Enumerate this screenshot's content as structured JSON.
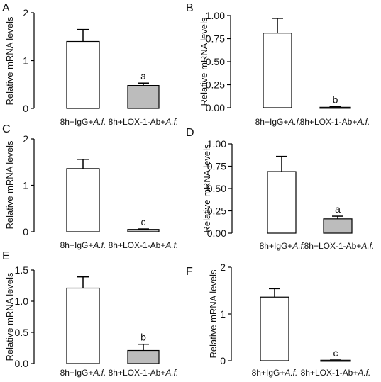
{
  "colors": {
    "control_bar": "#ffffff",
    "treated_bar": "#bcbcbc",
    "axis": "#000000"
  },
  "chart_data": [
    {
      "panel": "A",
      "type": "bar",
      "ylabel": "Relative mRNA levels",
      "categories": [
        {
          "prefix": "8h+IgG+",
          "italic": "A.f."
        },
        {
          "prefix": "8h+LOX-1-Ab+",
          "italic": "A.f."
        }
      ],
      "ylim": [
        0,
        2
      ],
      "yticks": [
        "0",
        "1",
        "2"
      ],
      "series": [
        {
          "values": [
            1.4,
            0.48
          ],
          "errors": [
            0.25,
            0.05
          ],
          "annotations": [
            "",
            "a"
          ]
        }
      ]
    },
    {
      "panel": "B",
      "type": "bar",
      "ylabel": "Relative mRNA levels",
      "categories": [
        {
          "prefix": "8h+IgG+",
          "italic": "A.f."
        },
        {
          "prefix": "8h+LOX-1-Ab+",
          "italic": "A.f."
        }
      ],
      "ylim": [
        0,
        1
      ],
      "yticks": [
        "0.00",
        "0.25",
        "0.50",
        "0.75",
        "1.00"
      ],
      "series": [
        {
          "values": [
            0.81,
            0.005
          ],
          "errors": [
            0.16,
            0.005
          ],
          "annotations": [
            "",
            "b"
          ]
        }
      ]
    },
    {
      "panel": "C",
      "type": "bar",
      "ylabel": "Relative mRNA levels",
      "categories": [
        {
          "prefix": "8h+IgG+",
          "italic": "A.f."
        },
        {
          "prefix": "8h+LOX-1-Ab+",
          "italic": "A.f."
        }
      ],
      "ylim": [
        0,
        2
      ],
      "yticks": [
        "0",
        "1",
        "2"
      ],
      "series": [
        {
          "values": [
            1.36,
            0.05
          ],
          "errors": [
            0.2,
            0.01
          ],
          "annotations": [
            "",
            "c"
          ]
        }
      ]
    },
    {
      "panel": "D",
      "type": "bar",
      "ylabel": "Relative mRNA levels",
      "categories": [
        {
          "prefix": "8h+IgG+",
          "italic": "A.f."
        },
        {
          "prefix": "8h+LOX-1-Ab+",
          "italic": "A.f."
        }
      ],
      "ylim": [
        0,
        1
      ],
      "yticks": [
        "0.00",
        "0.25",
        "0.50",
        "0.75",
        "1.00"
      ],
      "series": [
        {
          "values": [
            0.69,
            0.16
          ],
          "errors": [
            0.17,
            0.03
          ],
          "annotations": [
            "",
            "a"
          ]
        }
      ]
    },
    {
      "panel": "E",
      "type": "bar",
      "ylabel": "Relative mRNA levels",
      "categories": [
        {
          "prefix": "8h+IgG+",
          "italic": "A.f."
        },
        {
          "prefix": "8h+LOX-1-Ab+",
          "italic": "A.f."
        }
      ],
      "ylim": [
        0,
        1.5
      ],
      "yticks": [
        "0.0",
        "0.5",
        "1.0",
        "1.5"
      ],
      "series": [
        {
          "values": [
            1.21,
            0.21
          ],
          "errors": [
            0.18,
            0.1
          ],
          "annotations": [
            "",
            "b"
          ]
        }
      ]
    },
    {
      "panel": "F",
      "type": "bar",
      "ylabel": "Relative mRNA levels",
      "categories": [
        {
          "prefix": "8h+IgG+",
          "italic": "A.f."
        },
        {
          "prefix": "8h+LOX-1-Ab+",
          "italic": "A.f."
        }
      ],
      "ylim": [
        0,
        2
      ],
      "yticks": [
        "0",
        "1",
        "2"
      ],
      "series": [
        {
          "values": [
            1.36,
            0.01
          ],
          "errors": [
            0.18,
            0.005
          ],
          "annotations": [
            "",
            "c"
          ]
        }
      ]
    }
  ]
}
